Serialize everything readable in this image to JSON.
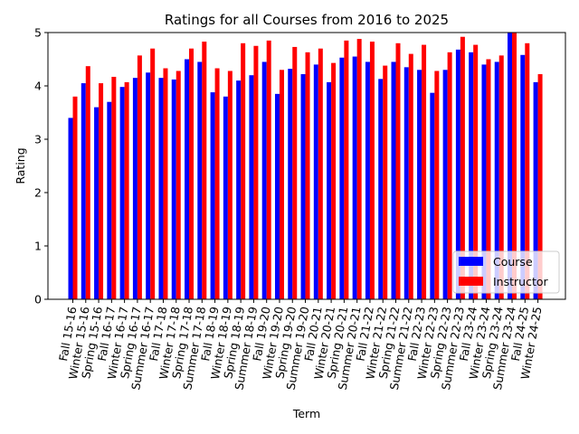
{
  "chart_data": {
    "type": "bar",
    "title": "Ratings for all Courses from 2016 to 2025",
    "xlabel": "Term",
    "ylabel": "Rating",
    "ylim": [
      0,
      5
    ],
    "yticks": [
      0,
      1,
      2,
      3,
      4,
      5
    ],
    "grid": false,
    "legend_position": "bottom-right",
    "categories": [
      "Fall 15-16",
      "Winter 15-16",
      "Spring 15-16",
      "Fall 16-17",
      "Winter 16-17",
      "Spring 16-17",
      "Summer 16-17",
      "Fall 17-18",
      "Winter 17-18",
      "Spring 17-18",
      "Summer 17-18",
      "Fall 18-19",
      "Winter 18-19",
      "Spring 18-19",
      "Summer 18-19",
      "Fall 19-20",
      "Winter 19-20",
      "Spring 19-20",
      "Summer 19-20",
      "Fall 20-21",
      "Winter 20-21",
      "Spring 20-21",
      "Summer 20-21",
      "Fall 21-22",
      "Winter 21-22",
      "Spring 21-22",
      "Summer 21-22",
      "Fall 22-23",
      "Winter 22-23",
      "Spring 22-23",
      "Summer 22-23",
      "Fall 23-24",
      "Winter 23-24",
      "Spring 23-24",
      "Summer 23-24",
      "Fall 24-25",
      "Winter 24-25"
    ],
    "series": [
      {
        "name": "Course",
        "color": "#0000ff",
        "values": [
          3.4,
          4.05,
          3.6,
          3.7,
          3.98,
          4.15,
          4.25,
          4.15,
          4.12,
          4.5,
          4.45,
          3.88,
          3.8,
          4.1,
          4.2,
          4.45,
          3.85,
          4.32,
          4.22,
          4.4,
          4.07,
          4.53,
          4.55,
          4.45,
          4.13,
          4.45,
          4.35,
          4.3,
          3.87,
          4.3,
          4.68,
          4.63,
          4.4,
          4.45,
          5.0,
          4.58,
          4.07
        ]
      },
      {
        "name": "Instructor",
        "color": "#ff0000",
        "values": [
          3.8,
          4.37,
          4.05,
          4.17,
          4.07,
          4.57,
          4.7,
          4.33,
          4.28,
          4.7,
          4.83,
          4.33,
          4.28,
          4.8,
          4.75,
          4.85,
          4.3,
          4.73,
          4.63,
          4.7,
          4.43,
          4.85,
          4.88,
          4.83,
          4.38,
          4.8,
          4.6,
          4.77,
          4.28,
          4.63,
          4.92,
          4.77,
          4.5,
          4.57,
          5.0,
          4.8,
          4.22
        ]
      }
    ]
  }
}
